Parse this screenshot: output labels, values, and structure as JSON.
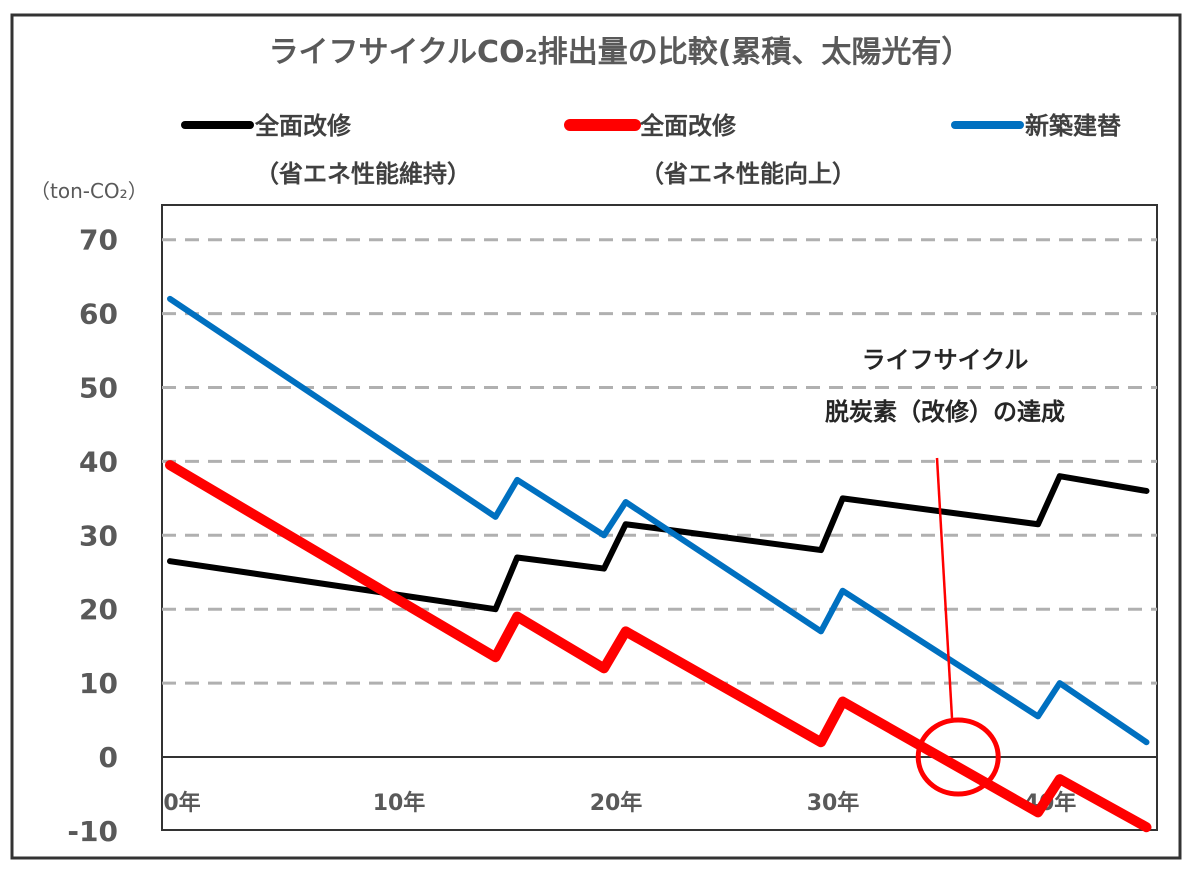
{
  "chart_data": {
    "type": "line",
    "title": "ライフサイクルCO₂排出量の比較(累積、太陽光有）",
    "ylabel": "（ton-CO₂）",
    "xlabel": "",
    "xlim": [
      0,
      45
    ],
    "ylim": [
      -10,
      75
    ],
    "grid": "horizontal dashed",
    "legend_position": "top",
    "x_ticks": [
      {
        "v": 0,
        "label": "0年"
      },
      {
        "v": 10,
        "label": "10年"
      },
      {
        "v": 20,
        "label": "20年"
      },
      {
        "v": 30,
        "label": "30年"
      },
      {
        "v": 40,
        "label": "40年"
      }
    ],
    "y_ticks": [
      {
        "v": -10,
        "label": "-10",
        "color": "#ff0000"
      },
      {
        "v": 0,
        "label": "0"
      },
      {
        "v": 10,
        "label": "10"
      },
      {
        "v": 20,
        "label": "20"
      },
      {
        "v": 30,
        "label": "30"
      },
      {
        "v": 40,
        "label": "40"
      },
      {
        "v": 50,
        "label": "50"
      },
      {
        "v": 60,
        "label": "60"
      },
      {
        "v": 70,
        "label": "70"
      }
    ],
    "series": [
      {
        "name": "全面改修",
        "sub": "（省エネ性能維持）",
        "color": "#000000",
        "width": 6,
        "x": [
          0,
          15,
          16,
          20,
          21,
          30,
          31,
          40,
          41,
          45
        ],
        "y": [
          26.5,
          20,
          27,
          25.5,
          31.5,
          28,
          35,
          31.5,
          38,
          36
        ]
      },
      {
        "name": "全面改修",
        "sub": "（省エネ性能向上）",
        "color": "#ff0000",
        "width": 10,
        "x": [
          0,
          15,
          16,
          20,
          21,
          30,
          31,
          40,
          41,
          45
        ],
        "y": [
          39.5,
          13.5,
          19,
          12,
          17,
          2,
          7.5,
          -7.5,
          -3,
          -9.5
        ]
      },
      {
        "name": "新築建替",
        "sub": "",
        "color": "#0070c0",
        "width": 6,
        "x": [
          0,
          15,
          16,
          20,
          21,
          30,
          31,
          40,
          41,
          45
        ],
        "y": [
          62,
          32.5,
          37.5,
          30,
          34.5,
          17,
          22.5,
          5.5,
          10,
          2
        ]
      }
    ],
    "annotation": {
      "line1": "ライフサイクル",
      "line2": "脱炭素（改修）の達成",
      "point_x": 36,
      "point_y": 0,
      "color": "#ff0000"
    }
  }
}
